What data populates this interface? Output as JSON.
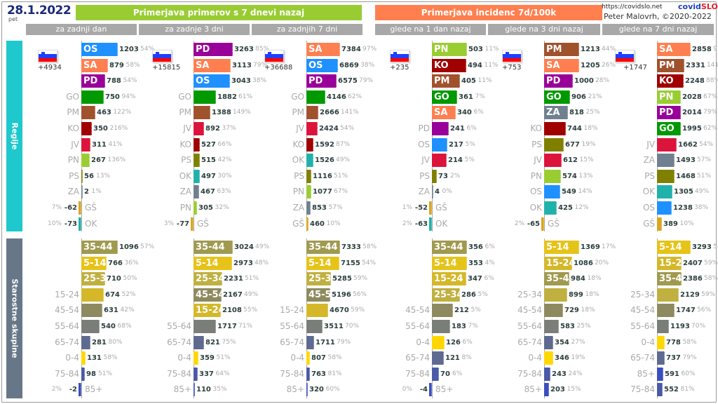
{
  "header": {
    "date": "28.1.2022",
    "day": "pet",
    "title_cases": "Primerjava primerov s 7 dnevi nazaj",
    "title_incidence": "Primerjava incidenc 7d/100k",
    "url": "https://covidslo.net",
    "brand_a": "covid",
    "brand_b": "SLO",
    "author": "Peter Malovrh, ©2020-2022",
    "subheaders": [
      "za zadnji dan",
      "za zadnje 3 dni",
      "za zadnjih 7 dni",
      "glede na 1 dan nazaj",
      "glede na 3 dni nazaj",
      "glede na 7 dni nazaj"
    ]
  },
  "sections": {
    "regions": "Regije",
    "ages": "Starostne skupine"
  },
  "colors": {
    "OS": "#1e90ff",
    "SA": "#ff7f50",
    "PD": "#990099",
    "GO": "#009900",
    "PM": "#a0522d",
    "KO": "#a00000",
    "JV": "#dc143c",
    "PN": "#9acd32",
    "PS": "#808000",
    "ZA": "#708090",
    "GŠ": "#daa520",
    "OK": "#20b2aa",
    "35-44": "#a09a50",
    "5-14": "#e6c319",
    "25-34": "#c0b040",
    "15-24": "#d4b82a",
    "45-54": "#8e8a60",
    "55-64": "#7a7e78",
    "65-74": "#5e6a90",
    "0-4": "#ffd700",
    "75-84": "#4a5aa8",
    "85+": "#3a4ec0"
  },
  "chart_data": [
    {
      "type": "bar",
      "title": "Primerjava primerov s 7 dnevi nazaj — za zadnji dan",
      "total": "+4934",
      "regions": [
        {
          "label": "OS",
          "value": 1203,
          "pct": "54%"
        },
        {
          "label": "SA",
          "value": 879,
          "pct": "58%"
        },
        {
          "label": "PD",
          "value": 788,
          "pct": "54%"
        },
        {
          "label": "GO",
          "value": 750,
          "pct": "94%"
        },
        {
          "label": "PM",
          "value": 463,
          "pct": "122%"
        },
        {
          "label": "KO",
          "value": 350,
          "pct": "216%"
        },
        {
          "label": "JV",
          "value": 311,
          "pct": "41%"
        },
        {
          "label": "PN",
          "value": 267,
          "pct": "136%"
        },
        {
          "label": "PS",
          "value": 56,
          "pct": "13%"
        },
        {
          "label": "ZA",
          "value": 2,
          "pct": "1%"
        },
        {
          "label": "GŠ",
          "value": -62,
          "pct": "7%"
        },
        {
          "label": "OK",
          "value": -73,
          "pct": "10%"
        }
      ],
      "ages": [
        {
          "label": "35-44",
          "value": 1096,
          "pct": "57%"
        },
        {
          "label": "5-14",
          "value": 766,
          "pct": "36%"
        },
        {
          "label": "25-34",
          "value": 710,
          "pct": "50%"
        },
        {
          "label": "15-24",
          "value": 674,
          "pct": "52%"
        },
        {
          "label": "45-54",
          "value": 631,
          "pct": "42%"
        },
        {
          "label": "55-64",
          "value": 540,
          "pct": "68%"
        },
        {
          "label": "65-74",
          "value": 281,
          "pct": "80%"
        },
        {
          "label": "0-4",
          "value": 131,
          "pct": "58%"
        },
        {
          "label": "75-84",
          "value": 98,
          "pct": "51%"
        },
        {
          "label": "85+",
          "value": -2,
          "pct": "2%"
        }
      ]
    },
    {
      "type": "bar",
      "title": "Primerjava primerov s 7 dnevi nazaj — za zadnje 3 dni",
      "total": "+15815",
      "regions": [
        {
          "label": "PD",
          "value": 3263,
          "pct": "85%"
        },
        {
          "label": "SA",
          "value": 3113,
          "pct": "79%"
        },
        {
          "label": "OS",
          "value": 3043,
          "pct": "38%"
        },
        {
          "label": "GO",
          "value": 1882,
          "pct": "61%"
        },
        {
          "label": "PM",
          "value": 1388,
          "pct": "149%"
        },
        {
          "label": "JV",
          "value": 892,
          "pct": "37%"
        },
        {
          "label": "KO",
          "value": 527,
          "pct": "66%"
        },
        {
          "label": "PS",
          "value": 515,
          "pct": "42%"
        },
        {
          "label": "OK",
          "value": 497,
          "pct": "30%"
        },
        {
          "label": "ZA",
          "value": 467,
          "pct": "63%"
        },
        {
          "label": "PN",
          "value": 305,
          "pct": "32%"
        },
        {
          "label": "GŠ",
          "value": -77,
          "pct": "3%"
        }
      ],
      "ages": [
        {
          "label": "35-44",
          "value": 3024,
          "pct": "49%"
        },
        {
          "label": "5-14",
          "value": 2973,
          "pct": "48%"
        },
        {
          "label": "25-34",
          "value": 2231,
          "pct": "51%"
        },
        {
          "label": "45-54",
          "value": 2167,
          "pct": "49%"
        },
        {
          "label": "15-24",
          "value": 2108,
          "pct": "55%"
        },
        {
          "label": "55-64",
          "value": 1717,
          "pct": "71%"
        },
        {
          "label": "65-74",
          "value": 821,
          "pct": "75%"
        },
        {
          "label": "0-4",
          "value": 359,
          "pct": "51%"
        },
        {
          "label": "75-84",
          "value": 337,
          "pct": "64%"
        },
        {
          "label": "85+",
          "value": 110,
          "pct": "35%"
        }
      ]
    },
    {
      "type": "bar",
      "title": "Primerjava primerov s 7 dnevi nazaj — za zadnjih 7 dni",
      "total": "+36688",
      "regions": [
        {
          "label": "SA",
          "value": 7384,
          "pct": "97%"
        },
        {
          "label": "OS",
          "value": 6869,
          "pct": "38%"
        },
        {
          "label": "PD",
          "value": 6575,
          "pct": "79%"
        },
        {
          "label": "GO",
          "value": 4146,
          "pct": "62%"
        },
        {
          "label": "PM",
          "value": 2666,
          "pct": "141%"
        },
        {
          "label": "JV",
          "value": 2424,
          "pct": "54%"
        },
        {
          "label": "KO",
          "value": 1592,
          "pct": "87%"
        },
        {
          "label": "OK",
          "value": 1526,
          "pct": "49%"
        },
        {
          "label": "PS",
          "value": 1116,
          "pct": "51%"
        },
        {
          "label": "PN",
          "value": 1077,
          "pct": "67%"
        },
        {
          "label": "ZA",
          "value": 853,
          "pct": "57%"
        },
        {
          "label": "GŠ",
          "value": 460,
          "pct": "10%"
        }
      ],
      "ages": [
        {
          "label": "35-44",
          "value": 7333,
          "pct": "58%"
        },
        {
          "label": "5-14",
          "value": 7155,
          "pct": "54%"
        },
        {
          "label": "25-34",
          "value": 5285,
          "pct": "59%"
        },
        {
          "label": "45-54",
          "value": 5196,
          "pct": "56%"
        },
        {
          "label": "15-24",
          "value": 4670,
          "pct": "59%"
        },
        {
          "label": "55-64",
          "value": 3511,
          "pct": "70%"
        },
        {
          "label": "65-74",
          "value": 1711,
          "pct": "79%"
        },
        {
          "label": "0-4",
          "value": 807,
          "pct": "58%"
        },
        {
          "label": "75-84",
          "value": 763,
          "pct": "81%"
        },
        {
          "label": "85+",
          "value": 320,
          "pct": "60%"
        }
      ]
    },
    {
      "type": "bar",
      "title": "Primerjava incidenc 7d/100k — glede na 1 dan nazaj",
      "total": "+235",
      "regions": [
        {
          "label": "PN",
          "value": 503,
          "pct": "11%"
        },
        {
          "label": "KO",
          "value": 494,
          "pct": "11%"
        },
        {
          "label": "PM",
          "value": 405,
          "pct": "11%"
        },
        {
          "label": "GO",
          "value": 361,
          "pct": "7%"
        },
        {
          "label": "SA",
          "value": 340,
          "pct": "6%"
        },
        {
          "label": "PD",
          "value": 241,
          "pct": "6%"
        },
        {
          "label": "OS",
          "value": 217,
          "pct": "5%"
        },
        {
          "label": "JV",
          "value": 214,
          "pct": "5%"
        },
        {
          "label": "PS",
          "value": 73,
          "pct": "2%"
        },
        {
          "label": "ZA",
          "value": 4,
          "pct": "0%"
        },
        {
          "label": "GŠ",
          "value": -52,
          "pct": "1%"
        },
        {
          "label": "OK",
          "value": -63,
          "pct": "2%"
        }
      ],
      "ages": [
        {
          "label": "35-44",
          "value": 356,
          "pct": "6%"
        },
        {
          "label": "5-14",
          "value": 353,
          "pct": "4%"
        },
        {
          "label": "15-24",
          "value": 347,
          "pct": "6%"
        },
        {
          "label": "25-34",
          "value": 286,
          "pct": "5%"
        },
        {
          "label": "45-54",
          "value": 212,
          "pct": "5%"
        },
        {
          "label": "55-64",
          "value": 183,
          "pct": "7%"
        },
        {
          "label": "0-4",
          "value": 126,
          "pct": "6%"
        },
        {
          "label": "65-74",
          "value": 121,
          "pct": "8%"
        },
        {
          "label": "75-84",
          "value": 70,
          "pct": "6%"
        },
        {
          "label": "85+",
          "value": -4,
          "pct": "0%"
        }
      ]
    },
    {
      "type": "bar",
      "title": "Primerjava incidenc 7d/100k — glede na 3 dni nazaj",
      "total": "+753",
      "regions": [
        {
          "label": "PM",
          "value": 1213,
          "pct": "44%"
        },
        {
          "label": "SA",
          "value": 1205,
          "pct": "26%"
        },
        {
          "label": "PD",
          "value": 1000,
          "pct": "28%"
        },
        {
          "label": "GO",
          "value": 906,
          "pct": "21%"
        },
        {
          "label": "ZA",
          "value": 818,
          "pct": "25%"
        },
        {
          "label": "KO",
          "value": 744,
          "pct": "18%"
        },
        {
          "label": "PS",
          "value": 677,
          "pct": "19%"
        },
        {
          "label": "JV",
          "value": 612,
          "pct": "15%"
        },
        {
          "label": "PN",
          "value": 574,
          "pct": "13%"
        },
        {
          "label": "OS",
          "value": 549,
          "pct": "14%"
        },
        {
          "label": "OK",
          "value": 425,
          "pct": "12%"
        },
        {
          "label": "GŠ",
          "value": -65,
          "pct": "2%"
        }
      ],
      "ages": [
        {
          "label": "5-14",
          "value": 1369,
          "pct": "17%"
        },
        {
          "label": "15-24",
          "value": 1086,
          "pct": "20%"
        },
        {
          "label": "35-44",
          "value": 984,
          "pct": "18%"
        },
        {
          "label": "25-34",
          "value": 899,
          "pct": "18%"
        },
        {
          "label": "45-54",
          "value": 729,
          "pct": "18%"
        },
        {
          "label": "55-64",
          "value": 583,
          "pct": "25%"
        },
        {
          "label": "65-74",
          "value": 354,
          "pct": "27%"
        },
        {
          "label": "0-4",
          "value": 346,
          "pct": "19%"
        },
        {
          "label": "75-84",
          "value": 243,
          "pct": "24%"
        },
        {
          "label": "85+",
          "value": 203,
          "pct": "15%"
        }
      ]
    },
    {
      "type": "bar",
      "title": "Primerjava incidenc 7d/100k — glede na 7 dni nazaj",
      "total": "+1747",
      "regions": [
        {
          "label": "SA",
          "value": 2858,
          "pct": "97%"
        },
        {
          "label": "PM",
          "value": 2331,
          "pct": "141%"
        },
        {
          "label": "KO",
          "value": 2248,
          "pct": "88%"
        },
        {
          "label": "PN",
          "value": 2028,
          "pct": "67%"
        },
        {
          "label": "PD",
          "value": 2014,
          "pct": "79%"
        },
        {
          "label": "GO",
          "value": 1995,
          "pct": "62%"
        },
        {
          "label": "JV",
          "value": 1662,
          "pct": "54%"
        },
        {
          "label": "ZA",
          "value": 1493,
          "pct": "57%"
        },
        {
          "label": "PS",
          "value": 1468,
          "pct": "51%"
        },
        {
          "label": "OK",
          "value": 1305,
          "pct": "49%"
        },
        {
          "label": "OS",
          "value": 1238,
          "pct": "38%"
        },
        {
          "label": "GŠ",
          "value": 389,
          "pct": "10%"
        }
      ],
      "ages": [
        {
          "label": "5-14",
          "value": 3293,
          "pct": "54%"
        },
        {
          "label": "15-24",
          "value": 2407,
          "pct": "59%"
        },
        {
          "label": "35-44",
          "value": 2386,
          "pct": "58%"
        },
        {
          "label": "25-34",
          "value": 2129,
          "pct": "59%"
        },
        {
          "label": "45-54",
          "value": 1747,
          "pct": "56%"
        },
        {
          "label": "55-64",
          "value": 1193,
          "pct": "70%"
        },
        {
          "label": "0-4",
          "value": 778,
          "pct": "58%"
        },
        {
          "label": "65-74",
          "value": 737,
          "pct": "79%"
        },
        {
          "label": "85+",
          "value": 591,
          "pct": "60%"
        },
        {
          "label": "75-84",
          "value": 552,
          "pct": "81%"
        }
      ]
    }
  ]
}
